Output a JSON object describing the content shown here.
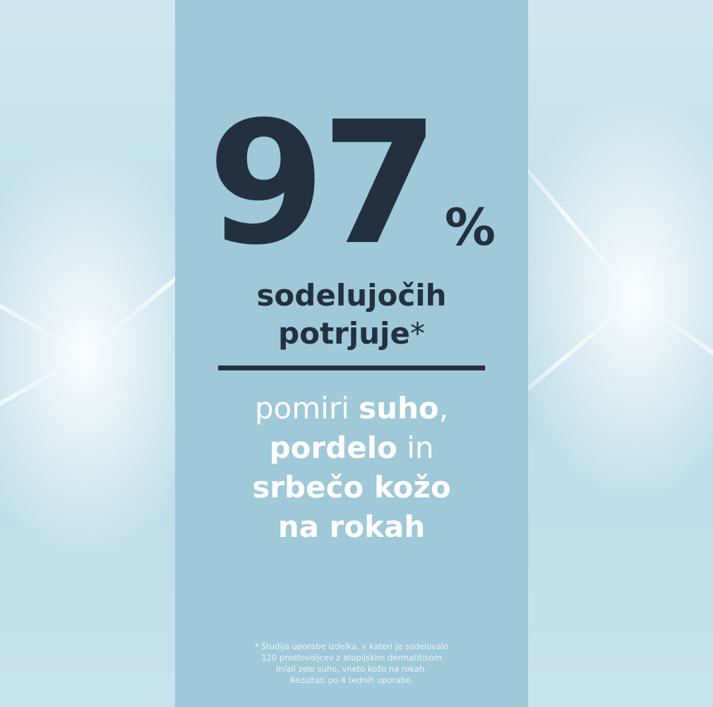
{
  "headline": {
    "number": "97",
    "percent": "%",
    "line1": "sodelujočih",
    "line2": "potrjuje",
    "asterisk": "*"
  },
  "claim": {
    "p1": "pomiri ",
    "b1": "suho",
    "p2": ",",
    "b2": "pordelo",
    "p3": " in",
    "b3": "srbečo kožo",
    "b4": "na rokah"
  },
  "footnote": [
    "* Študija uporabe izdelka, v kateri je sodelovalo",
    "120 prostovoljcev z atopijskim dermatitisom",
    "in/ali zelo suho, vneto kožo na rokah.",
    "Rezultati po 4 tednih uporabe."
  ],
  "colors": {
    "panel": "#9fc8d8",
    "text": "#22303f",
    "background": "#c4e0eb"
  }
}
